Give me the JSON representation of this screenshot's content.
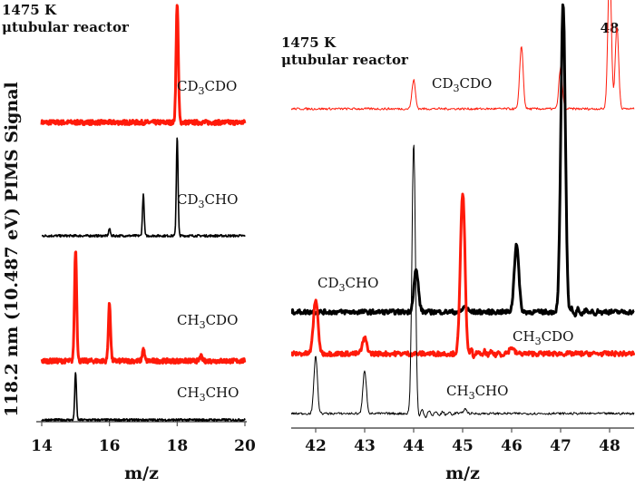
{
  "colors": {
    "red": "#ff1a0a",
    "black": "#000000"
  },
  "y_axis_label": "118.2 nm (10.487 eV) PIMS Signal",
  "chart_data": [
    {
      "type": "line",
      "panel": "left",
      "annotation": [
        "1475 K",
        "μtubular reactor"
      ],
      "xlabel": "m/z",
      "xlim": [
        14,
        20
      ],
      "xticks": [
        "14",
        "16",
        "18",
        "20"
      ],
      "ylim": [
        0,
        4.65
      ],
      "grid": false,
      "series": [
        {
          "name": "CD3CDO",
          "label_main": "CD",
          "label_sub": "3",
          "label_rest": "CDO",
          "color": "red",
          "weight": "thick",
          "offset": 3.3,
          "peaks": [
            [
              18,
              1.32
            ]
          ]
        },
        {
          "name": "CD3CHO",
          "label_main": "CD",
          "label_sub": "3",
          "label_rest": "CHO",
          "color": "black",
          "weight": "medium",
          "offset": 2.05,
          "peaks": [
            [
              16,
              0.08
            ],
            [
              17,
              0.46
            ],
            [
              18,
              1.1
            ]
          ]
        },
        {
          "name": "CH3CDO",
          "label_main": "CH",
          "label_sub": "3",
          "label_rest": "CDO",
          "color": "red",
          "weight": "thick",
          "offset": 0.67,
          "peaks": [
            [
              15,
              1.23
            ],
            [
              16,
              0.63
            ],
            [
              17,
              0.13
            ],
            [
              18.7,
              0.05
            ]
          ]
        },
        {
          "name": "CH3CHO",
          "label_main": "CH",
          "label_sub": "3",
          "label_rest": "CHO",
          "color": "black",
          "weight": "medium",
          "offset": 0.02,
          "peaks": [
            [
              15,
              0.53
            ]
          ]
        }
      ]
    },
    {
      "type": "line",
      "panel": "right",
      "annotation": [
        "1475 K",
        "μtubular reactor"
      ],
      "peak_annotation": "48",
      "xlabel": "m/z",
      "xlim": [
        41.5,
        48.5
      ],
      "xticks": [
        "42",
        "43",
        "44",
        "45",
        "46",
        "47",
        "48"
      ],
      "ylim": [
        0,
        4.72
      ],
      "grid": false,
      "series": [
        {
          "name": "CD3CDO",
          "label_main": "CD",
          "label_sub": "3",
          "label_rest": "CDO",
          "color": "red",
          "weight": "thin",
          "offset": 3.52,
          "peaks": [
            [
              44,
              0.32
            ],
            [
              46.2,
              0.7
            ],
            [
              47,
              0.46
            ],
            [
              48,
              1.6
            ],
            [
              48.15,
              0.9
            ]
          ]
        },
        {
          "name": "CD3CHO",
          "label_main": "CD",
          "label_sub": "3",
          "label_rest": "CHO",
          "color": "black",
          "weight": "thick",
          "offset": 1.28,
          "peaks": [
            [
              44.05,
              0.46
            ],
            [
              45.05,
              0.06
            ],
            [
              46.1,
              0.76
            ],
            [
              47.05,
              3.4
            ]
          ]
        },
        {
          "name": "CH3CDO",
          "label_main": "CH",
          "label_sub": "3",
          "label_rest": "CDO",
          "color": "red",
          "weight": "thick",
          "offset": 0.82,
          "peaks": [
            [
              42,
              0.6
            ],
            [
              43,
              0.17
            ],
            [
              45,
              1.78
            ],
            [
              46,
              0.07
            ]
          ]
        },
        {
          "name": "CH3CHO",
          "label_main": "CH",
          "label_sub": "3",
          "label_rest": "CHO",
          "color": "black",
          "weight": "thin",
          "offset": 0.16,
          "peaks": [
            [
              42,
              0.64
            ],
            [
              43,
              0.48
            ],
            [
              44,
              2.99
            ],
            [
              45.05,
              0.05
            ]
          ]
        }
      ]
    }
  ]
}
